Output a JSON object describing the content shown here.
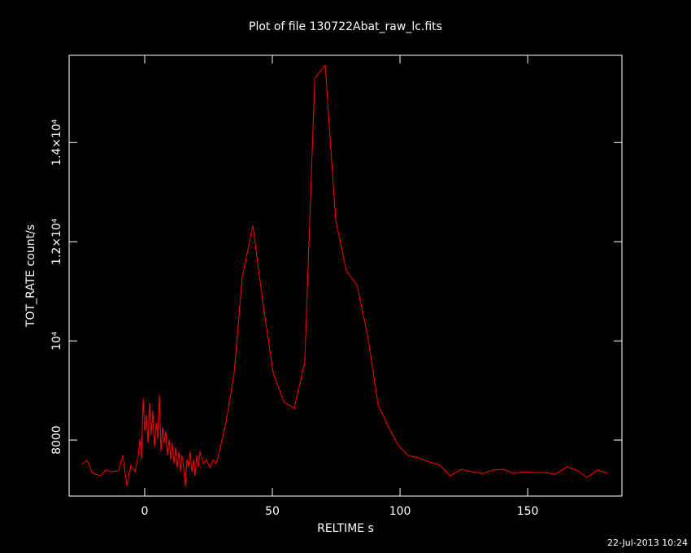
{
  "chart_data": {
    "type": "line",
    "title": "Plot of file 130722Abat_raw_lc.fits",
    "x_label": "RELTIME  s",
    "y_label": "TOT_RATE  count/s",
    "footer": "22-Jul-2013 10:24",
    "xlim": [
      -29.6,
      186.9
    ],
    "ylim": [
      6870,
      15760
    ],
    "xticks": [
      0,
      50,
      100,
      150
    ],
    "yticks": [
      8000,
      {
        "value": 10000,
        "label": "10⁴"
      },
      {
        "value": 12000,
        "label": "1.2×10⁴"
      },
      {
        "value": 14000,
        "label": "1.4×10⁴"
      }
    ],
    "series": [
      {
        "name": "TOT_RATE",
        "color": "#ff0000",
        "x": [
          -24.8,
          -22.6,
          -20.4,
          -17.2,
          -15.3,
          -13.1,
          -10.2,
          -8.6,
          -7.0,
          -5.4,
          -3.8,
          -2.5,
          -1.9,
          -1.3,
          -0.6,
          0,
          0.6,
          1.3,
          1.9,
          2.5,
          3.2,
          3.8,
          4.5,
          5.1,
          5.7,
          6.4,
          7.0,
          7.6,
          8.3,
          8.9,
          9.6,
          10.2,
          10.8,
          11.5,
          12.1,
          12.7,
          13.4,
          14.0,
          14.6,
          15.3,
          15.9,
          16.6,
          17.2,
          17.8,
          18.5,
          19.1,
          19.7,
          20.4,
          21.0,
          21.7,
          22.9,
          24.2,
          25.5,
          26.8,
          28.0,
          29.3,
          31.8,
          35.0,
          38.2,
          42.4,
          46.2,
          50.3,
          54.5,
          58.6,
          62.7,
          66.6,
          70.7,
          74.8,
          79.0,
          83.1,
          87.3,
          91.4,
          95.5,
          99.4,
          103.2,
          107.3,
          111.5,
          115.6,
          119.7,
          123.9,
          128.0,
          132.2,
          136.3,
          140.4,
          144.6,
          148.7,
          152.9,
          157.0,
          161.1,
          165.3,
          169.1,
          173.2,
          177.4,
          181.5
        ],
        "values": [
          7508,
          7590,
          7328,
          7279,
          7393,
          7361,
          7377,
          7689,
          7082,
          7492,
          7361,
          7689,
          8016,
          7607,
          8836,
          8180,
          8508,
          7934,
          8754,
          8098,
          8590,
          7852,
          8344,
          8016,
          8918,
          7771,
          8262,
          7934,
          8180,
          7689,
          8016,
          7607,
          7934,
          7525,
          7852,
          7443,
          7771,
          7361,
          7689,
          7443,
          7066,
          7607,
          7443,
          7771,
          7361,
          7607,
          7279,
          7689,
          7443,
          7771,
          7525,
          7607,
          7443,
          7607,
          7525,
          7771,
          8344,
          9328,
          11295,
          12328,
          10803,
          9361,
          8770,
          8639,
          9574,
          15295,
          15557,
          12443,
          11410,
          11131,
          10115,
          8721,
          8262,
          7885,
          7689,
          7639,
          7557,
          7492,
          7279,
          7410,
          7361,
          7328,
          7393,
          7410,
          7328,
          7361,
          7344,
          7344,
          7311,
          7459,
          7393,
          7246,
          7393,
          7328
        ]
      }
    ]
  }
}
